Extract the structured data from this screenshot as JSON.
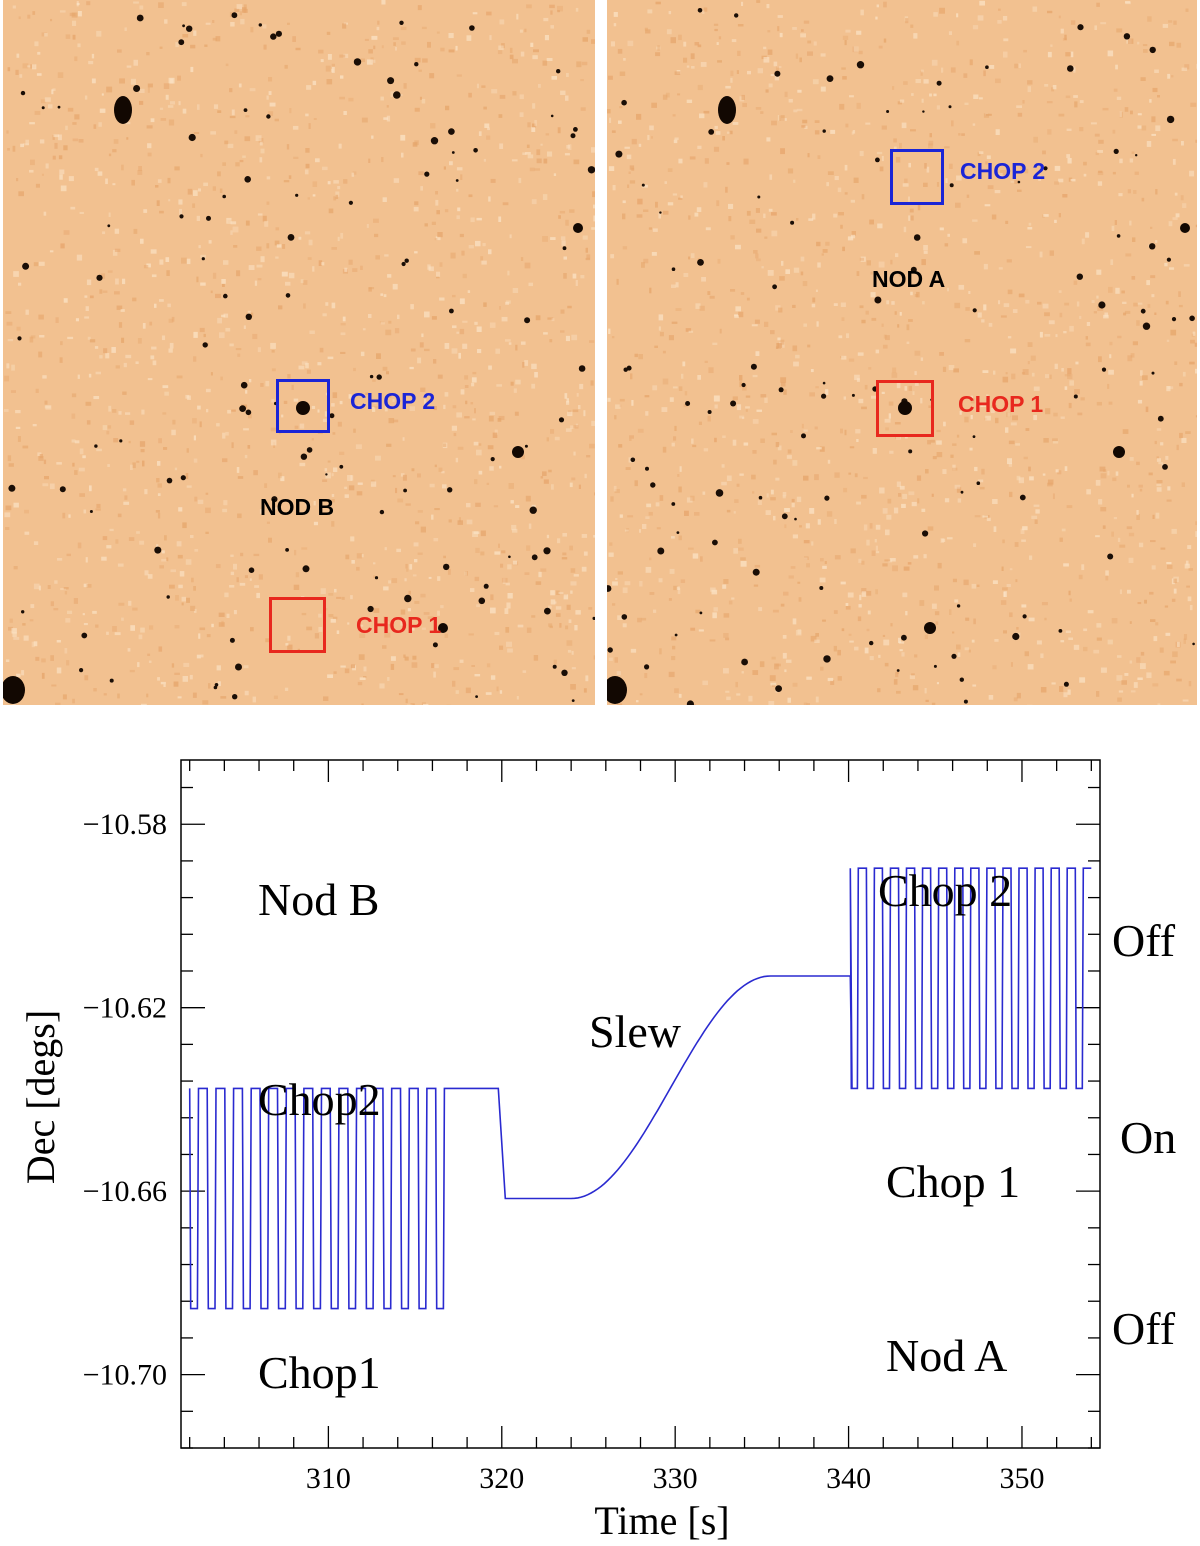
{
  "colors": {
    "chop1": "#e8281e",
    "chop2": "#1a25d6",
    "nod": "#000000",
    "sky": "#f2c190",
    "curve": "#2a2ad0"
  },
  "images": {
    "left": {
      "nod_label": "NOD B",
      "chop1_label": "CHOP 1",
      "chop2_label": "CHOP 2"
    },
    "right": {
      "nod_label": "NOD A",
      "chop1_label": "CHOP 1",
      "chop2_label": "CHOP 2"
    }
  },
  "chart_data": {
    "type": "line",
    "xlabel": "Time [s]",
    "ylabel": "Dec [degs]",
    "xlim": [
      301.5,
      354.5
    ],
    "ylim": [
      -10.716,
      -10.566
    ],
    "xticks": [
      310,
      320,
      330,
      340,
      350
    ],
    "yticks": [
      -10.58,
      -10.62,
      -10.66,
      -10.7
    ],
    "xtick_labels": [
      "310",
      "320",
      "330",
      "340",
      "350"
    ],
    "ytick_labels": [
      "−10.58",
      "−10.62",
      "−10.66",
      "−10.70"
    ],
    "annotations": {
      "nod_b": "Nod B",
      "chop2_left": "Chop2",
      "chop1_left": "Chop1",
      "slew": "Slew",
      "chop2_right": "Chop 2",
      "chop1_right": "Chop 1",
      "nod_a": "Nod A",
      "off_top": "Off",
      "on": "On",
      "off_bottom": "Off"
    },
    "series": [
      {
        "nod_b_chopping": {
          "t_start": 302.0,
          "t_end": 317.2,
          "period": 1.0,
          "high": -10.6376,
          "low": -10.6856
        },
        "hold_after_chop": {
          "t_start": 317.2,
          "t_end": 319.8,
          "value": -10.6376
        },
        "drop": {
          "t_start": 319.8,
          "t_end": 320.2,
          "value": -10.6616
        },
        "pre_slew": {
          "t_start": 320.2,
          "t_end": 324.0,
          "value": -10.6616
        },
        "slew": {
          "t_start": 324.0,
          "t_end": 335.5,
          "from": -10.6616,
          "to": -10.6131
        },
        "post_slew": {
          "t_start": 335.5,
          "t_end": 340.1,
          "value": -10.6131
        },
        "nod_a_chopping": {
          "t_start": 340.1,
          "t_end": 354.0,
          "period": 0.92,
          "high": -10.5896,
          "low": -10.6376
        }
      }
    ]
  }
}
